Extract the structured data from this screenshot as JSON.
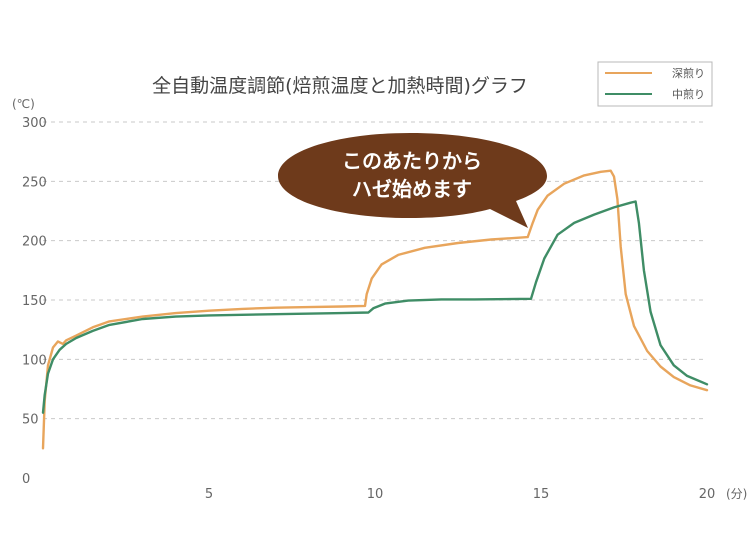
{
  "chart_data": {
    "type": "line",
    "title": "全自動温度調節(焙煎温度と加熱時間)グラフ",
    "y_unit": "(℃)",
    "x_unit": "(分)",
    "xlim": [
      0,
      20
    ],
    "ylim": [
      0,
      300
    ],
    "x_ticks": [
      "5",
      "10",
      "15",
      "20"
    ],
    "x_tick_values": [
      5,
      10,
      15,
      20
    ],
    "y_ticks": [
      "300",
      "250",
      "200",
      "150",
      "100",
      "50",
      "0"
    ],
    "y_tick_values": [
      300,
      250,
      200,
      150,
      100,
      50,
      0
    ],
    "grid": true,
    "legend_position": "top-right",
    "annotation": {
      "line1": "このあたりから",
      "line2": "ハゼ始めます"
    },
    "series": [
      {
        "name": "深煎り",
        "color": "#e8a55c",
        "points": [
          [
            0,
            25
          ],
          [
            0.05,
            65
          ],
          [
            0.15,
            95
          ],
          [
            0.3,
            110
          ],
          [
            0.45,
            115
          ],
          [
            0.6,
            113
          ],
          [
            0.7,
            116
          ],
          [
            1,
            120
          ],
          [
            1.5,
            127
          ],
          [
            2,
            132
          ],
          [
            3,
            136
          ],
          [
            4,
            139
          ],
          [
            5,
            141
          ],
          [
            6,
            142.5
          ],
          [
            7,
            143.5
          ],
          [
            8,
            144
          ],
          [
            9,
            144.5
          ],
          [
            9.7,
            145
          ],
          [
            9.75,
            155
          ],
          [
            9.9,
            168
          ],
          [
            10.2,
            180
          ],
          [
            10.7,
            188
          ],
          [
            11.5,
            194
          ],
          [
            12.5,
            198
          ],
          [
            13.5,
            201
          ],
          [
            14.6,
            203
          ],
          [
            14.75,
            215
          ],
          [
            14.9,
            226
          ],
          [
            15.2,
            238
          ],
          [
            15.7,
            248
          ],
          [
            16.3,
            255
          ],
          [
            16.8,
            258
          ],
          [
            17.1,
            259
          ],
          [
            17.2,
            254
          ],
          [
            17.3,
            235
          ],
          [
            17.4,
            195
          ],
          [
            17.55,
            155
          ],
          [
            17.8,
            128
          ],
          [
            18.2,
            107
          ],
          [
            18.6,
            94
          ],
          [
            19,
            85
          ],
          [
            19.5,
            78
          ],
          [
            20,
            74
          ]
        ]
      },
      {
        "name": "中煎り",
        "color": "#3f8d66",
        "points": [
          [
            0,
            55
          ],
          [
            0.05,
            70
          ],
          [
            0.15,
            88
          ],
          [
            0.3,
            100
          ],
          [
            0.5,
            108
          ],
          [
            0.7,
            113
          ],
          [
            1,
            118
          ],
          [
            1.5,
            124
          ],
          [
            2,
            129
          ],
          [
            3,
            134
          ],
          [
            4,
            136
          ],
          [
            5,
            137
          ],
          [
            7,
            138
          ],
          [
            9,
            139
          ],
          [
            9.8,
            139.5
          ],
          [
            9.95,
            143
          ],
          [
            10.3,
            147
          ],
          [
            11,
            149.5
          ],
          [
            12,
            150.5
          ],
          [
            13,
            150.5
          ],
          [
            14.7,
            151
          ],
          [
            14.85,
            165
          ],
          [
            15.1,
            185
          ],
          [
            15.5,
            205
          ],
          [
            16,
            215
          ],
          [
            16.6,
            222
          ],
          [
            17.2,
            228
          ],
          [
            17.7,
            232
          ],
          [
            17.85,
            233
          ],
          [
            17.95,
            215
          ],
          [
            18.1,
            175
          ],
          [
            18.3,
            140
          ],
          [
            18.6,
            112
          ],
          [
            19,
            95
          ],
          [
            19.4,
            86
          ],
          [
            20,
            79
          ]
        ]
      }
    ]
  }
}
